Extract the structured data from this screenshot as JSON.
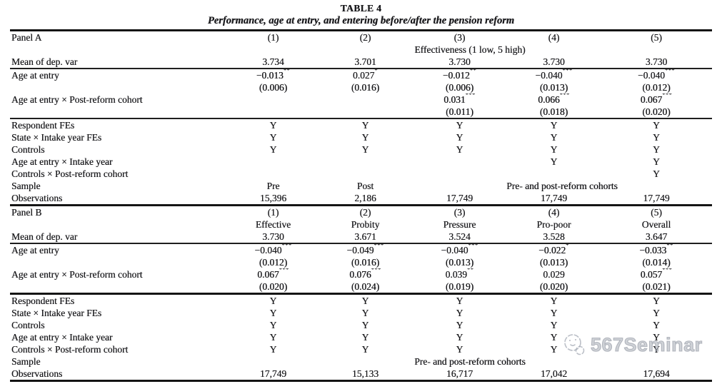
{
  "colors": {
    "text": "#1b1b1e",
    "rule": "#141414",
    "watermark": "#a8adb7"
  },
  "title": "TABLE 4",
  "subtitle": "Performance, age at entry, and entering before/after the pension reform",
  "watermark": {
    "text": "567Seminar",
    "icon": "sketch-face-logo"
  },
  "panel_a": {
    "label": "Panel A",
    "col_headers": [
      "(1)",
      "(2)",
      "(3)",
      "(4)",
      "(5)"
    ],
    "subheader_cells": [
      {
        "text": "Effectiveness (1 low, 5 high)",
        "span": 5
      }
    ],
    "mean_row": {
      "label": "Mean of dep. var",
      "values": [
        "3.734",
        "3.701",
        "3.730",
        "3.730",
        "3.730"
      ]
    },
    "coef_rows": [
      {
        "label": "Age at entry",
        "values": [
          "−0.013**",
          "0.027*",
          "−0.012**",
          "−0.040***",
          "−0.040***"
        ]
      },
      {
        "label": "",
        "values": [
          "(0.006)",
          "(0.016)",
          "(0.006)",
          "(0.013)",
          "(0.012)"
        ]
      },
      {
        "label": "Age at entry × Post-reform cohort",
        "values": [
          "",
          "",
          "0.031***",
          "0.066***",
          "0.067***"
        ]
      },
      {
        "label": "",
        "values": [
          "",
          "",
          "(0.011)",
          "(0.018)",
          "(0.020)"
        ]
      }
    ],
    "spec_rows": [
      {
        "label": "Respondent FEs",
        "values": [
          "Y",
          "Y",
          "Y",
          "Y",
          "Y"
        ]
      },
      {
        "label": "State × Intake year FEs",
        "values": [
          "Y",
          "Y",
          "Y",
          "Y",
          "Y"
        ]
      },
      {
        "label": "Controls",
        "values": [
          "Y",
          "Y",
          "Y",
          "Y",
          "Y"
        ]
      },
      {
        "label": "Age at entry × Intake year",
        "values": [
          "",
          "",
          "",
          "Y",
          "Y"
        ]
      },
      {
        "label": "Controls × Post-reform cohort",
        "values": [
          "",
          "",
          "",
          "",
          "Y"
        ]
      }
    ],
    "sample_row": {
      "label": "Sample",
      "cells": [
        {
          "text": "Pre",
          "span": 1
        },
        {
          "text": "Post",
          "span": 1
        },
        {
          "text": "Pre- and post-reform cohorts",
          "span": 3
        }
      ]
    },
    "obs_row": {
      "label": "Observations",
      "values": [
        "15,396",
        "2,186",
        "17,749",
        "17,749",
        "17,749"
      ]
    }
  },
  "panel_b": {
    "label": "Panel B",
    "col_headers": [
      "(1)",
      "(2)",
      "(3)",
      "(4)",
      "(5)"
    ],
    "subheader_cells": [
      {
        "text": "Effective",
        "span": 1
      },
      {
        "text": "Probity",
        "span": 1
      },
      {
        "text": "Pressure",
        "span": 1
      },
      {
        "text": "Pro-poor",
        "span": 1
      },
      {
        "text": "Overall",
        "span": 1
      }
    ],
    "mean_row": {
      "label": "Mean of dep. var",
      "values": [
        "3.730",
        "3.671",
        "3.524",
        "3.528",
        "3.647"
      ]
    },
    "coef_rows": [
      {
        "label": "Age at entry",
        "values": [
          "−0.040***",
          "−0.049***",
          "−0.040***",
          "−0.022*",
          "−0.033**"
        ]
      },
      {
        "label": "",
        "values": [
          "(0.012)",
          "(0.016)",
          "(0.013)",
          "(0.013)",
          "(0.014)"
        ]
      },
      {
        "label": "Age at entry × Post-reform cohort",
        "values": [
          "0.067***",
          "0.076***",
          "0.039**",
          "0.029",
          "0.057***"
        ]
      },
      {
        "label": "",
        "values": [
          "(0.020)",
          "(0.024)",
          "(0.019)",
          "(0.020)",
          "(0.021)"
        ]
      }
    ],
    "spec_rows": [
      {
        "label": "Respondent FEs",
        "values": [
          "Y",
          "Y",
          "Y",
          "Y",
          "Y"
        ]
      },
      {
        "label": "State × Intake year FEs",
        "values": [
          "Y",
          "Y",
          "Y",
          "Y",
          "Y"
        ]
      },
      {
        "label": "Controls",
        "values": [
          "Y",
          "Y",
          "Y",
          "Y",
          "Y"
        ]
      },
      {
        "label": "Age at entry × Intake year",
        "values": [
          "Y",
          "Y",
          "Y",
          "Y",
          "Y"
        ]
      },
      {
        "label": "Controls × Post-reform cohort",
        "values": [
          "Y",
          "Y",
          "Y",
          "Y",
          "Y"
        ]
      }
    ],
    "sample_row": {
      "label": "Sample",
      "cells": [
        {
          "text": "Pre- and post-reform cohorts",
          "span": 5
        }
      ]
    },
    "obs_row": {
      "label": "Observations",
      "values": [
        "17,749",
        "15,133",
        "16,717",
        "17,042",
        "17,694"
      ]
    }
  }
}
